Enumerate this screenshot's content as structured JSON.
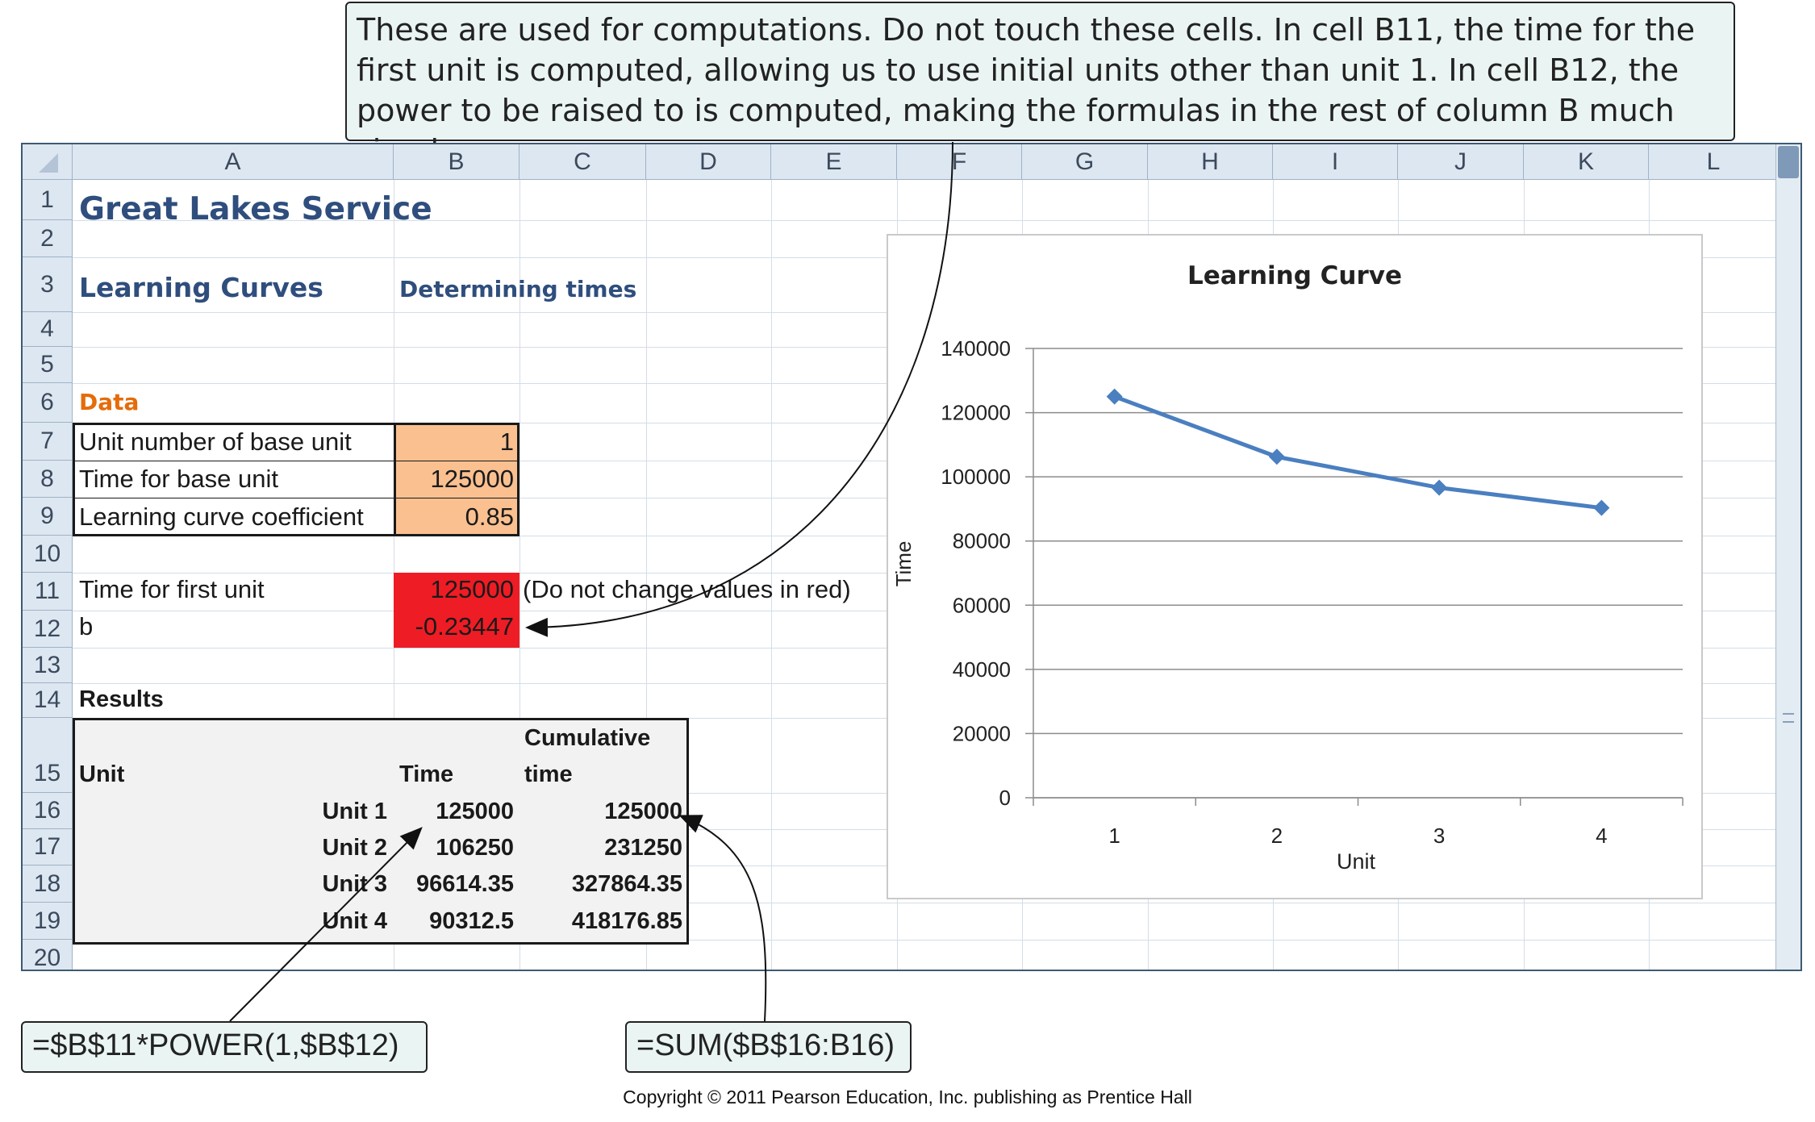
{
  "callout_top": "These are used for computations. Do not touch these cells. In cell B11, the time for the first unit is computed, allowing us to use initial units other than unit 1. In cell B12, the power to be raised to is computed, making the formulas in the rest of column B much simpler.",
  "formula_left": "=$B$11*POWER(1,$B$12)",
  "formula_right": "=SUM($B$16:B16)",
  "copyright": "Copyright © 2011 Pearson Education, Inc. publishing as Prentice Hall",
  "columns": [
    "A",
    "B",
    "C",
    "D",
    "E",
    "F",
    "G",
    "H",
    "I",
    "J",
    "K",
    "L"
  ],
  "rows": [
    "1",
    "2",
    "3",
    "4",
    "5",
    "6",
    "7",
    "8",
    "9",
    "10",
    "11",
    "12",
    "13",
    "14",
    "15",
    "16",
    "17",
    "18",
    "19",
    "20"
  ],
  "cells": {
    "a1": "Great Lakes Service",
    "a3": "Learning Curves",
    "b3": "Determining times",
    "a6": "Data",
    "a7": "Unit number of base unit",
    "b7": "1",
    "a8": "Time for base unit",
    "b8": "125000",
    "a9": "Learning curve coefficient",
    "b9": "0.85",
    "a11": "Time for first unit",
    "b11": "125000",
    "c11": "(Do not change values in red)",
    "a12": "b",
    "b12": "-0.23447",
    "a14": "Results",
    "c15a": "Cumulative",
    "c15b": "time",
    "a15": "Unit",
    "b15": "Time",
    "results": [
      {
        "unit": "Unit 1",
        "time": "125000",
        "cum": "125000"
      },
      {
        "unit": "Unit 2",
        "time": "106250",
        "cum": "231250"
      },
      {
        "unit": "Unit 3",
        "time": "96614.35",
        "cum": "327864.35"
      },
      {
        "unit": "Unit 4",
        "time": "90312.5",
        "cum": "418176.85"
      }
    ]
  },
  "colors": {
    "title": "#2f4e7d",
    "data_label": "#e46c0a",
    "input_fill": "#fac090",
    "red_fill": "#ee1c24",
    "series": "#4a7fc0"
  },
  "chart_data": {
    "type": "line",
    "title": "Learning Curve",
    "xlabel": "Unit",
    "ylabel": "Time",
    "categories": [
      "1",
      "2",
      "3",
      "4"
    ],
    "values": [
      125000,
      106250,
      96614.35,
      90312.5
    ],
    "ylim": [
      0,
      140000
    ],
    "yticks": [
      "0",
      "20000",
      "40000",
      "60000",
      "80000",
      "100000",
      "120000",
      "140000"
    ],
    "grid": true,
    "legend": "none"
  }
}
